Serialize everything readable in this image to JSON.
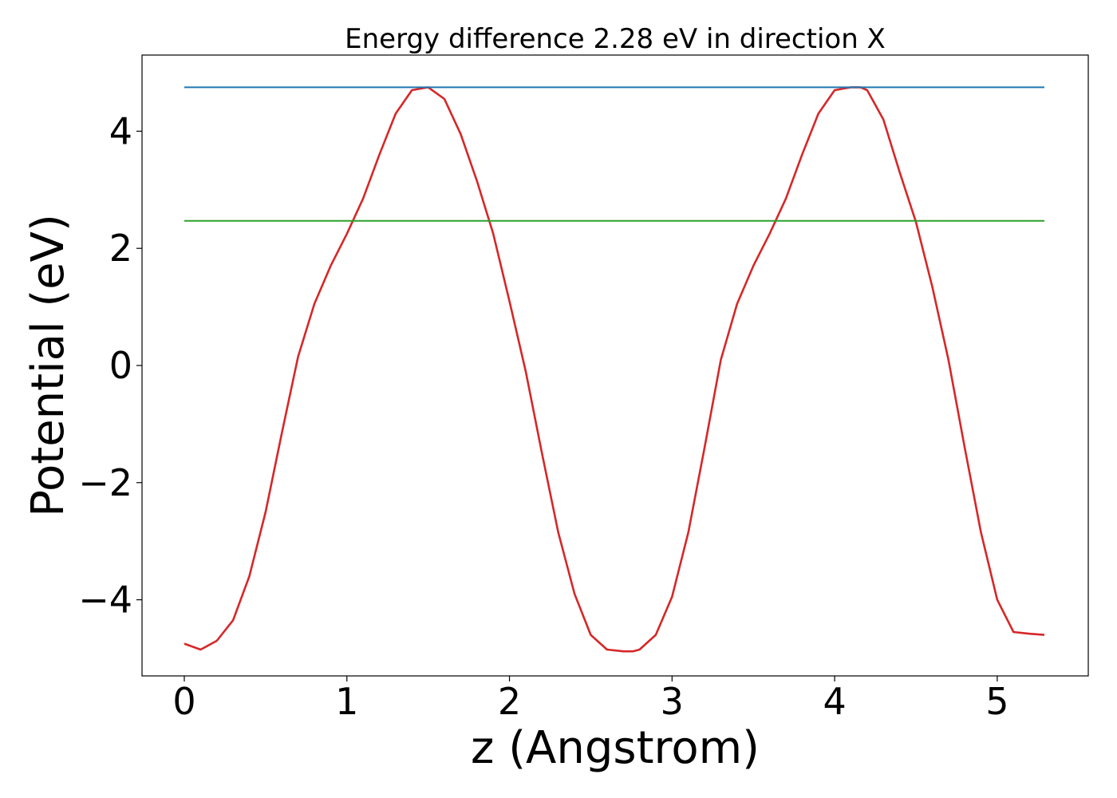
{
  "chart_data": {
    "type": "line",
    "title": "Energy difference 2.28 eV in direction X",
    "xlabel": "z (Angstrom)",
    "ylabel": "Potential (eV)",
    "xlim": [
      -0.26,
      5.56
    ],
    "ylim": [
      -5.3,
      5.3
    ],
    "x_ticks": [
      0,
      1,
      2,
      3,
      4,
      5
    ],
    "y_ticks": [
      -4,
      -2,
      0,
      2,
      4
    ],
    "grid": false,
    "series": [
      {
        "color": "#d62728",
        "x": [
          0,
          0.1,
          0.2,
          0.3,
          0.4,
          0.5,
          0.6,
          0.7,
          0.8,
          0.9,
          1.0,
          1.1,
          1.2,
          1.3,
          1.4,
          1.5,
          1.6,
          1.7,
          1.8,
          1.9,
          2.0,
          2.1,
          2.2,
          2.3,
          2.4,
          2.5,
          2.6,
          2.7,
          2.76,
          2.8,
          2.9,
          3.0,
          3.1,
          3.2,
          3.3,
          3.4,
          3.5,
          3.6,
          3.7,
          3.8,
          3.9,
          4.0,
          4.1,
          4.16,
          4.2,
          4.3,
          4.4,
          4.5,
          4.6,
          4.7,
          4.8,
          4.9,
          5.0,
          5.1,
          5.2,
          5.29
        ],
        "y": [
          -4.75,
          -4.85,
          -4.7,
          -4.35,
          -3.6,
          -2.5,
          -1.15,
          0.15,
          1.05,
          1.7,
          2.25,
          2.85,
          3.6,
          4.3,
          4.7,
          4.75,
          4.55,
          3.95,
          3.15,
          2.25,
          1.1,
          -0.1,
          -1.5,
          -2.85,
          -3.9,
          -4.6,
          -4.85,
          -4.88,
          -4.88,
          -4.85,
          -4.6,
          -3.95,
          -2.85,
          -1.4,
          0.1,
          1.05,
          1.7,
          2.25,
          2.85,
          3.6,
          4.3,
          4.7,
          4.75,
          4.75,
          4.7,
          4.2,
          3.3,
          2.45,
          1.35,
          0.1,
          -1.4,
          -2.85,
          -4.0,
          -4.55,
          -4.58,
          -4.6
        ]
      },
      {
        "color": "#1f77b4",
        "x": [
          0,
          5.29
        ],
        "y": [
          4.75,
          4.75
        ]
      },
      {
        "color": "#2ca02c",
        "x": [
          0,
          5.29
        ],
        "y": [
          2.47,
          2.47
        ]
      }
    ]
  }
}
